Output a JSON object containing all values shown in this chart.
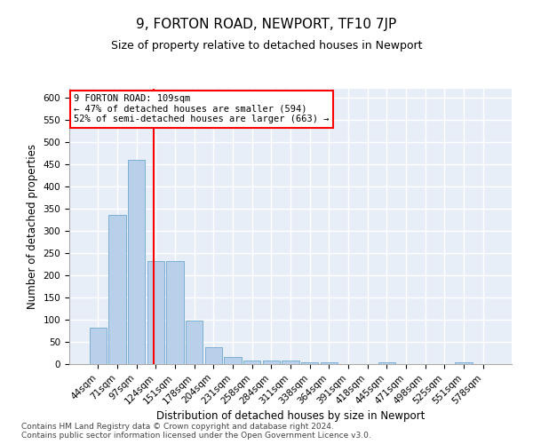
{
  "title": "9, FORTON ROAD, NEWPORT, TF10 7JP",
  "subtitle": "Size of property relative to detached houses in Newport",
  "xlabel": "Distribution of detached houses by size in Newport",
  "ylabel": "Number of detached properties",
  "categories": [
    "44sqm",
    "71sqm",
    "97sqm",
    "124sqm",
    "151sqm",
    "178sqm",
    "204sqm",
    "231sqm",
    "258sqm",
    "284sqm",
    "311sqm",
    "338sqm",
    "364sqm",
    "391sqm",
    "418sqm",
    "445sqm",
    "471sqm",
    "498sqm",
    "525sqm",
    "551sqm",
    "578sqm"
  ],
  "values": [
    82,
    337,
    460,
    233,
    233,
    98,
    38,
    17,
    8,
    8,
    8,
    5,
    5,
    0,
    0,
    5,
    0,
    0,
    0,
    5,
    0
  ],
  "bar_color": "#b8d0ea",
  "bar_edge_color": "#6fa8d0",
  "vline_x": 2.88,
  "vline_color": "red",
  "annotation_text": "9 FORTON ROAD: 109sqm\n← 47% of detached houses are smaller (594)\n52% of semi-detached houses are larger (663) →",
  "annotation_box_color": "white",
  "annotation_box_edge": "red",
  "ylim": [
    0,
    620
  ],
  "yticks": [
    0,
    50,
    100,
    150,
    200,
    250,
    300,
    350,
    400,
    450,
    500,
    550,
    600
  ],
  "background_color": "#e8eef8",
  "grid_color": "white",
  "footer": "Contains HM Land Registry data © Crown copyright and database right 2024.\nContains public sector information licensed under the Open Government Licence v3.0.",
  "title_fontsize": 11,
  "subtitle_fontsize": 9,
  "xlabel_fontsize": 8.5,
  "ylabel_fontsize": 8.5,
  "footer_fontsize": 6.5,
  "tick_fontsize": 7.5,
  "annotation_fontsize": 7.5
}
